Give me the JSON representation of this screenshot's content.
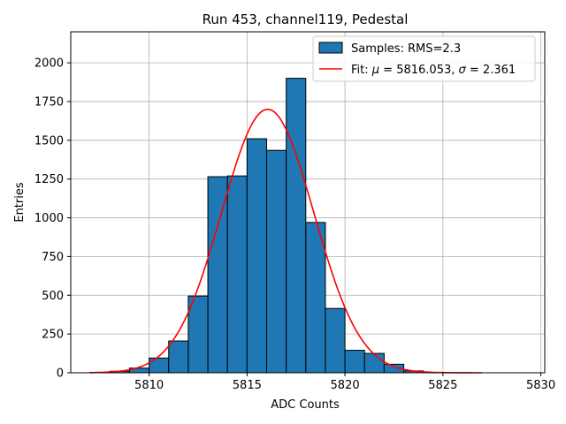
{
  "chart_data": {
    "type": "bar",
    "title": "Run 453, channel119, Pedestal",
    "xlabel": "ADC Counts",
    "ylabel": "Entries",
    "xlim": [
      5806,
      5830.2
    ],
    "ylim": [
      0,
      2200
    ],
    "xticks": [
      5810,
      5815,
      5820,
      5825,
      5830
    ],
    "yticks": [
      0,
      250,
      500,
      750,
      1000,
      1250,
      1500,
      1750,
      2000
    ],
    "grid": true,
    "legend_position": "top-right",
    "bin_width": 1,
    "bin_starts": [
      5807,
      5808,
      5809,
      5810,
      5811,
      5812,
      5813,
      5814,
      5815,
      5816,
      5817,
      5818,
      5819,
      5820,
      5821,
      5822,
      5823,
      5824
    ],
    "values": [
      3,
      10,
      30,
      95,
      205,
      495,
      1265,
      1270,
      1510,
      1435,
      1900,
      970,
      415,
      145,
      125,
      55,
      12,
      2
    ],
    "series": [
      {
        "name": "Samples: RMS=2.3",
        "kind": "histogram",
        "color": "#1f77b4",
        "edge_color": "#000000"
      },
      {
        "name": "Fit: μ = 5816.053, σ = 2.361",
        "kind": "line",
        "color": "#ff0000",
        "mu": 5816.053,
        "sigma": 2.361,
        "amplitude": 1700,
        "x_range": [
          5807,
          5827
        ]
      }
    ],
    "legend": {
      "samples_prefix": "Samples: RMS=2.3",
      "fit_prefix": "Fit: ",
      "mu_symbol": "μ",
      "mu_text": " = 5816.053, ",
      "sigma_symbol": "σ",
      "sigma_text": " = 2.361"
    }
  }
}
